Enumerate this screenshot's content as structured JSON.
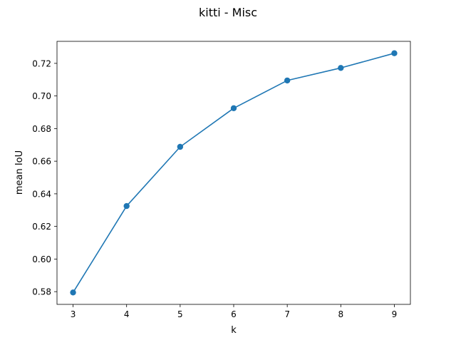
{
  "chart_data": {
    "type": "line",
    "title": "kitti - Misc",
    "xlabel": "k",
    "ylabel": "mean IoU",
    "x": [
      3,
      4,
      5,
      6,
      7,
      8,
      9
    ],
    "series": [
      {
        "values": [
          0.5795,
          0.6325,
          0.6688,
          0.6925,
          0.7095,
          0.7172,
          0.7262
        ]
      }
    ],
    "xlim": [
      2.7,
      9.3
    ],
    "ylim": [
      0.5722,
      0.7335
    ],
    "xticks": [
      3,
      4,
      5,
      6,
      7,
      8,
      9
    ],
    "xtick_labels": [
      "3",
      "4",
      "5",
      "6",
      "7",
      "8",
      "9"
    ],
    "yticks": [
      0.58,
      0.6,
      0.62,
      0.64,
      0.66,
      0.68,
      0.7,
      0.72
    ],
    "ytick_labels": [
      "0.58",
      "0.60",
      "0.62",
      "0.64",
      "0.66",
      "0.68",
      "0.70",
      "0.72"
    ],
    "grid": false,
    "markers": "circle",
    "color": "#1f77b4"
  }
}
